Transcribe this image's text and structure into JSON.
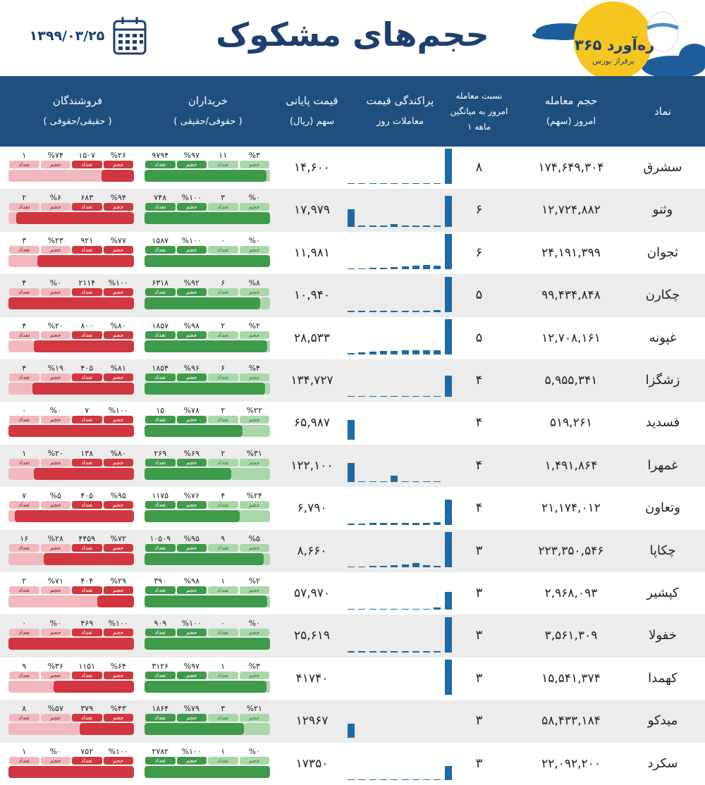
{
  "header": {
    "title": "حجم‌های مشکوک",
    "date": "۱۳۹۹/۰۳/۲۵",
    "logo_name": "ره‌آورد ۳۶۵",
    "logo_tagline": "برفراز بورس"
  },
  "columns": [
    {
      "lines": [
        "نماد"
      ]
    },
    {
      "lines": [
        "حجم معامله",
        "امروز (سهم)"
      ]
    },
    {
      "lines": [
        "نسبت معامله",
        "امروز به میانگین",
        "۱ ماهه"
      ]
    },
    {
      "lines": [
        "پراکندگی قیمت",
        "معاملات روز"
      ]
    },
    {
      "lines": [
        "قیمت پایانی",
        "سهم (ریال)"
      ]
    },
    {
      "lines": [
        "خریداران",
        "( حقوقی/حقیقی )"
      ]
    },
    {
      "lines": [
        "فروشندگان",
        "( حقیقی/حقوقی )"
      ]
    }
  ],
  "labels": {
    "volume": "حجم",
    "count": "تعداد"
  },
  "rows": [
    {
      "symbol": "سشرق",
      "volume": "۱۷۴,۶۴۹,۳۰۴",
      "ratio": "۸",
      "price": "۱۴,۶۰۰",
      "price_distribution": [
        3,
        3,
        3,
        3,
        3,
        3,
        3,
        3,
        3,
        100
      ],
      "buyers": {
        "shares": [
          3,
          97
        ],
        "value_labels": [
          "%۳",
          "%۹۷"
        ],
        "counts": [
          "۱۱",
          "۹۷۹۴"
        ]
      },
      "sellers": {
        "shares": [
          26,
          74
        ],
        "value_labels": [
          "%۲۶",
          "%۷۴"
        ],
        "counts": [
          "۱۵۰۷",
          "۱"
        ]
      }
    },
    {
      "symbol": "وثنو",
      "volume": "۱۲,۷۲۴,۸۸۲",
      "ratio": "۶",
      "price": "۱۷,۹۷۹",
      "price_distribution": [
        50,
        3,
        3,
        3,
        8,
        4,
        4,
        4,
        4,
        88
      ],
      "buyers": {
        "shares": [
          0,
          100
        ],
        "value_labels": [
          "%۰",
          "%۱۰۰"
        ],
        "counts": [
          "۳",
          "۷۴۸"
        ]
      },
      "sellers": {
        "shares": [
          94,
          6
        ],
        "value_labels": [
          "%۹۴",
          "%۶"
        ],
        "counts": [
          "۶۸۳",
          "۲"
        ]
      }
    },
    {
      "symbol": "ثجوان",
      "volume": "۲۴,۱۹۱,۳۹۹",
      "ratio": "۶",
      "price": "۱۱,۹۸۱",
      "price_distribution": [
        3,
        3,
        4,
        4,
        6,
        8,
        10,
        12,
        10,
        100
      ],
      "buyers": {
        "shares": [
          0,
          100
        ],
        "value_labels": [
          "%۰",
          "%۱۰۰"
        ],
        "counts": [
          "۰",
          "۱۵۸۷"
        ]
      },
      "sellers": {
        "shares": [
          77,
          23
        ],
        "value_labels": [
          "%۷۷",
          "%۲۳"
        ],
        "counts": [
          "۹۲۱",
          "۳"
        ]
      }
    },
    {
      "symbol": "چکارن",
      "volume": "۹۹,۴۳۴,۸۴۸",
      "ratio": "۵",
      "price": "۱۰,۹۴۰",
      "price_distribution": [
        3,
        3,
        3,
        3,
        3,
        3,
        3,
        3,
        5,
        100
      ],
      "buyers": {
        "shares": [
          8,
          92
        ],
        "value_labels": [
          "%۸",
          "%۹۲"
        ],
        "counts": [
          "۶",
          "۶۳۱۸"
        ]
      },
      "sellers": {
        "shares": [
          100,
          0
        ],
        "value_labels": [
          "%۱۰۰",
          "%۰"
        ],
        "counts": [
          "۲۱۱۴",
          "۴"
        ]
      }
    },
    {
      "symbol": "غپونه",
      "volume": "۱۲,۷۰۸,۱۶۱",
      "ratio": "۵",
      "price": "۲۸,۵۳۳",
      "price_distribution": [
        4,
        6,
        8,
        10,
        10,
        12,
        12,
        12,
        12,
        100
      ],
      "buyers": {
        "shares": [
          2,
          98
        ],
        "value_labels": [
          "%۲",
          "%۹۸"
        ],
        "counts": [
          "۲",
          "۱۸۵۷"
        ]
      },
      "sellers": {
        "shares": [
          80,
          20
        ],
        "value_labels": [
          "%۸۰",
          "%۲۰"
        ],
        "counts": [
          "۸۰۰",
          "۴"
        ]
      }
    },
    {
      "symbol": "زشگزا",
      "volume": "۵,۹۵۵,۳۴۱",
      "ratio": "۴",
      "price": "۱۳۴,۷۲۷",
      "price_distribution": [
        3,
        3,
        3,
        3,
        3,
        3,
        3,
        3,
        3,
        60
      ],
      "buyers": {
        "shares": [
          4,
          96
        ],
        "value_labels": [
          "%۴",
          "%۹۶"
        ],
        "counts": [
          "۶",
          "۱۸۵۴"
        ]
      },
      "sellers": {
        "shares": [
          81,
          19
        ],
        "value_labels": [
          "%۸۱",
          "%۱۹"
        ],
        "counts": [
          "۴۰۵",
          "۴"
        ]
      }
    },
    {
      "symbol": "فسدید",
      "volume": "۵۱۹,۲۶۱",
      "ratio": "۴",
      "price": "۶۵,۹۸۷",
      "price_distribution": [
        55,
        0,
        0,
        0,
        0,
        0,
        0,
        0,
        0,
        0
      ],
      "buyers": {
        "shares": [
          22,
          78
        ],
        "value_labels": [
          "%۲۲",
          "%۷۸"
        ],
        "counts": [
          "۲",
          "۱۵"
        ]
      },
      "sellers": {
        "shares": [
          100,
          0
        ],
        "value_labels": [
          "%۱۰۰",
          "%۰"
        ],
        "counts": [
          "۷",
          "۰"
        ]
      }
    },
    {
      "symbol": "غمهرا",
      "volume": "۱,۴۹۱,۸۶۴",
      "ratio": "۴",
      "price": "۱۲۲,۱۰۰",
      "price_distribution": [
        55,
        3,
        3,
        3,
        18,
        3,
        3,
        3,
        3,
        0
      ],
      "buyers": {
        "shares": [
          31,
          69
        ],
        "value_labels": [
          "%۳۱",
          "%۶۹"
        ],
        "counts": [
          "۲",
          "۲۶۹"
        ]
      },
      "sellers": {
        "shares": [
          80,
          20
        ],
        "value_labels": [
          "%۸۰",
          "%۲۰"
        ],
        "counts": [
          "۱۳۸",
          "۱"
        ]
      }
    },
    {
      "symbol": "وتعاون",
      "volume": "۲۱,۱۷۴,۰۱۲",
      "ratio": "۴",
      "price": "۶,۷۹۰",
      "price_distribution": [
        4,
        4,
        6,
        6,
        6,
        6,
        6,
        6,
        8,
        72
      ],
      "buyers": {
        "shares": [
          24,
          76
        ],
        "value_labels": [
          "%۲۴",
          "%۷۶"
        ],
        "counts": [
          "۴",
          "۱۱۷۵"
        ]
      },
      "sellers": {
        "shares": [
          95,
          5
        ],
        "value_labels": [
          "%۹۵",
          "%۵"
        ],
        "counts": [
          "۴۰۵",
          "۷"
        ]
      }
    },
    {
      "symbol": "چکاپا",
      "volume": "۲۲۳,۳۵۰,۵۴۶",
      "ratio": "۳",
      "price": "۸,۶۶۰",
      "price_distribution": [
        3,
        3,
        4,
        4,
        6,
        8,
        12,
        6,
        4,
        100
      ],
      "buyers": {
        "shares": [
          5,
          95
        ],
        "value_labels": [
          "%۵",
          "%۹۵"
        ],
        "counts": [
          "۹",
          "۱۰۵۰۹"
        ]
      },
      "sellers": {
        "shares": [
          72,
          28
        ],
        "value_labels": [
          "%۷۲",
          "%۲۸"
        ],
        "counts": [
          "۴۴۵۹",
          "۱۶"
        ]
      }
    },
    {
      "symbol": "کپشیر",
      "volume": "۲,۹۶۸,۰۹۳",
      "ratio": "۳",
      "price": "۵۷,۹۷۰",
      "price_distribution": [
        3,
        3,
        3,
        3,
        3,
        3,
        3,
        3,
        6,
        50
      ],
      "buyers": {
        "shares": [
          2,
          98
        ],
        "value_labels": [
          "%۲",
          "%۹۸"
        ],
        "counts": [
          "۱",
          "۳۹۰"
        ]
      },
      "sellers": {
        "shares": [
          29,
          71
        ],
        "value_labels": [
          "%۲۹",
          "%۷۱"
        ],
        "counts": [
          "۴۰۴",
          "۲"
        ]
      }
    },
    {
      "symbol": "خفولا",
      "volume": "۳,۵۶۱,۳۰۹",
      "ratio": "۳",
      "price": "۲۵,۶۱۹",
      "price_distribution": [
        3,
        3,
        3,
        3,
        3,
        3,
        3,
        3,
        3,
        100
      ],
      "buyers": {
        "shares": [
          0,
          100
        ],
        "value_labels": [
          "%۰",
          "%۱۰۰"
        ],
        "counts": [
          "۰",
          "۹۰۹"
        ]
      },
      "sellers": {
        "shares": [
          100,
          0
        ],
        "value_labels": [
          "%۱۰۰",
          "%۰"
        ],
        "counts": [
          "۴۶۹",
          "۰"
        ]
      }
    },
    {
      "symbol": "کهمدا",
      "volume": "۱۵,۵۴۱,۳۷۴",
      "ratio": "۳",
      "price": "۴۱۷۴۰",
      "price_distribution": [
        0,
        0,
        0,
        0,
        0,
        0,
        0,
        0,
        0,
        100
      ],
      "buyers": {
        "shares": [
          3,
          97
        ],
        "value_labels": [
          "%۳",
          "%۹۷"
        ],
        "counts": [
          "۱",
          "۳۱۲۶"
        ]
      },
      "sellers": {
        "shares": [
          64,
          36
        ],
        "value_labels": [
          "%۶۴",
          "%۳۶"
        ],
        "counts": [
          "۱۱۵۱",
          "۹"
        ]
      }
    },
    {
      "symbol": "میدکو",
      "volume": "۵۸,۴۳۳,۱۸۴",
      "ratio": "۳",
      "price": "۱۲۹۶۷",
      "price_distribution": [
        40,
        0,
        0,
        0,
        0,
        0,
        0,
        0,
        0,
        0
      ],
      "buyers": {
        "shares": [
          21,
          79
        ],
        "value_labels": [
          "%۲۱",
          "%۷۹"
        ],
        "counts": [
          "۳",
          "۱۸۶۴"
        ]
      },
      "sellers": {
        "shares": [
          43,
          57
        ],
        "value_labels": [
          "%۴۳",
          "%۵۷"
        ],
        "counts": [
          "۳۷۹",
          "۸"
        ]
      }
    },
    {
      "symbol": "سکرد",
      "volume": "۲۲,۰۹۲,۲۰۰",
      "ratio": "۳",
      "price": "۱۷۳۵۰",
      "price_distribution": [
        3,
        3,
        3,
        3,
        3,
        3,
        3,
        3,
        3,
        40
      ],
      "buyers": {
        "shares": [
          0,
          100
        ],
        "value_labels": [
          "%۰",
          "%۱۰۰"
        ],
        "counts": [
          "۱",
          "۲۷۸۲"
        ]
      },
      "sellers": {
        "shares": [
          100,
          0
        ],
        "value_labels": [
          "%۱۰۰",
          "%۰"
        ],
        "counts": [
          "۷۵۲",
          "۱"
        ]
      }
    }
  ]
}
